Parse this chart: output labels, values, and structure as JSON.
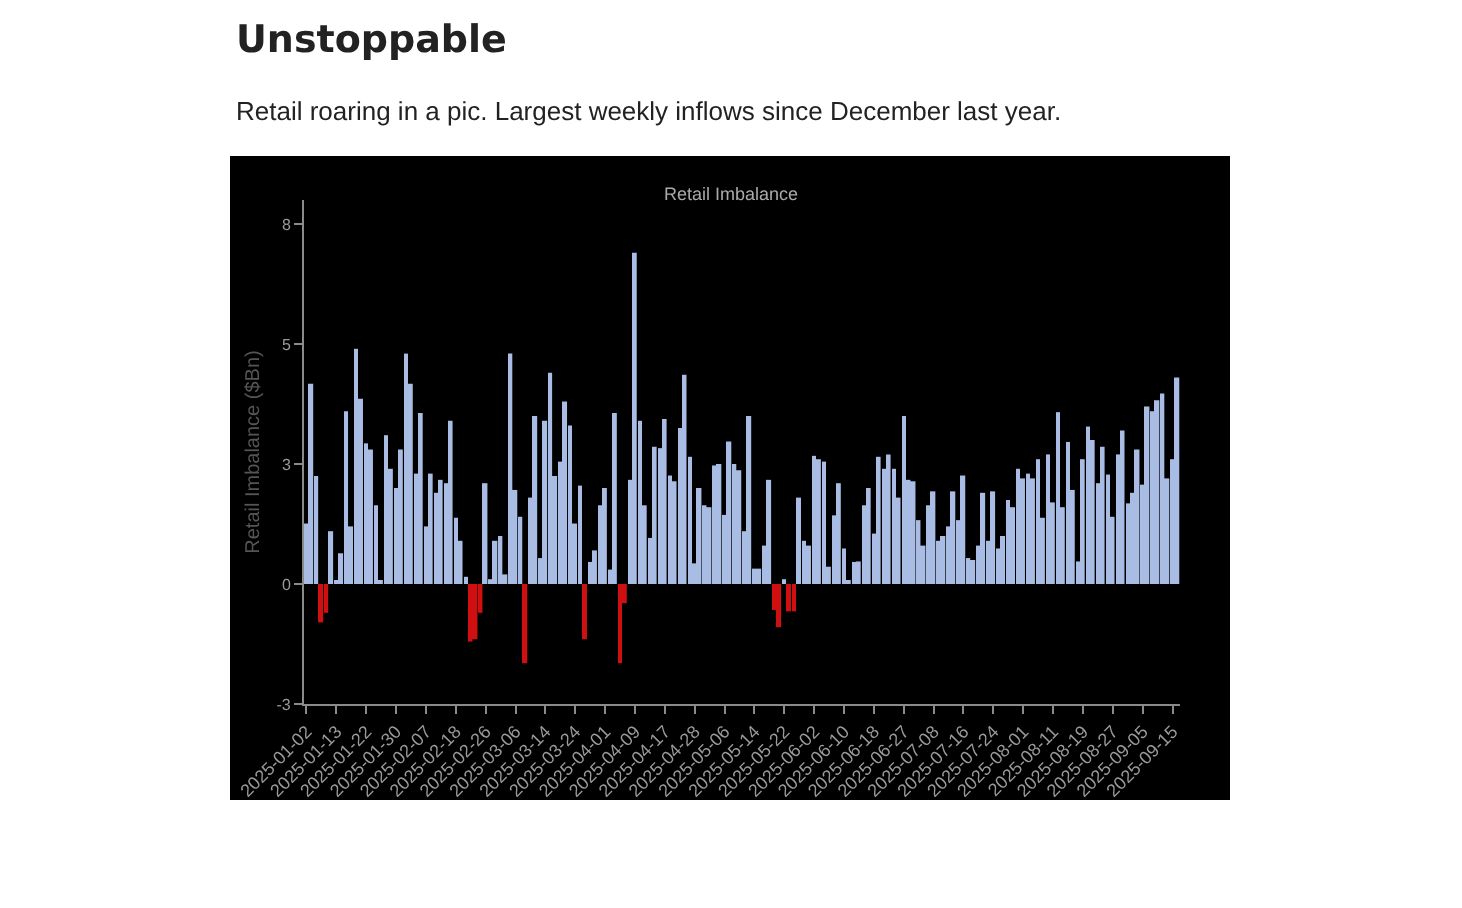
{
  "chart_data": {
    "type": "bar",
    "title": "Retail Imbalance",
    "annotations": [
      "Unstoppable",
      "Retail roaring in a pic. Largest weekly inflows since December last year."
    ],
    "ylabel": "Retail Imbalance ($Bn)",
    "categories": [
      "2025-01-02",
      null,
      null,
      null,
      null,
      null,
      "2025-01-13",
      null,
      null,
      null,
      null,
      null,
      "2025-01-22",
      null,
      null,
      null,
      null,
      null,
      "2025-01-30",
      null,
      null,
      null,
      null,
      null,
      "2025-02-07",
      null,
      null,
      null,
      null,
      null,
      "2025-02-18",
      null,
      null,
      null,
      null,
      null,
      "2025-02-26",
      null,
      null,
      null,
      null,
      null,
      "2025-03-06",
      null,
      null,
      null,
      null,
      null,
      "2025-03-14",
      null,
      null,
      null,
      null,
      null,
      "2025-03-24",
      null,
      null,
      null,
      null,
      null,
      "2025-04-01",
      null,
      null,
      null,
      null,
      null,
      "2025-04-09",
      null,
      null,
      null,
      null,
      null,
      "2025-04-17",
      null,
      null,
      null,
      null,
      null,
      "2025-04-28",
      null,
      null,
      null,
      null,
      null,
      "2025-05-06",
      null,
      null,
      null,
      null,
      null,
      "2025-05-14",
      null,
      null,
      null,
      null,
      null,
      "2025-05-22",
      null,
      null,
      null,
      null,
      null,
      "2025-06-02",
      null,
      null,
      null,
      null,
      null,
      "2025-06-10",
      null,
      null,
      null,
      null,
      null,
      "2025-06-18",
      null,
      null,
      null,
      null,
      null,
      "2025-06-27",
      null,
      null,
      null,
      null,
      null,
      "2025-07-08",
      null,
      null,
      null,
      null,
      null,
      "2025-07-16",
      null,
      null,
      null,
      null,
      null,
      "2025-07-24",
      null,
      null,
      null,
      null,
      null,
      "2025-08-01",
      null,
      null,
      null,
      null,
      null,
      "2025-08-11",
      null,
      null,
      null,
      null,
      null,
      "2025-08-19",
      null,
      null,
      null,
      null,
      null,
      "2025-08-27",
      null,
      null,
      null,
      null,
      null,
      "2025-09-05",
      null,
      null,
      null,
      null,
      null,
      "2025-09-15",
      null
    ],
    "values": [
      1.26,
      4.17,
      2.25,
      -0.8,
      -0.6,
      1.1,
      0.05,
      0.64,
      3.6,
      1.2,
      4.9,
      3.86,
      2.93,
      2.8,
      1.64,
      0.05,
      3.1,
      2.4,
      2.0,
      2.8,
      4.8,
      4.17,
      2.3,
      3.56,
      1.2,
      2.3,
      1.9,
      2.17,
      2.1,
      3.4,
      1.38,
      0.9,
      0.15,
      -1.2,
      -1.15,
      -0.6,
      2.1,
      0.1,
      0.9,
      1.0,
      0.2,
      4.8,
      1.96,
      1.4,
      -1.65,
      1.8,
      3.5,
      0.54,
      3.4,
      4.4,
      2.25,
      2.55,
      3.8,
      3.3,
      1.26,
      2.05,
      -1.15,
      0.46,
      0.7,
      1.64,
      2.0,
      0.3,
      3.56,
      -1.65,
      -0.4,
      2.17,
      6.9,
      3.4,
      1.64,
      0.96,
      2.86,
      2.83,
      3.44,
      2.26,
      2.14,
      3.25,
      4.36,
      2.65,
      0.43,
      2.0,
      1.64,
      1.6,
      2.47,
      2.5,
      1.44,
      2.97,
      2.5,
      2.37,
      1.1,
      3.5,
      0.32,
      0.32,
      0.8,
      2.17,
      -0.54,
      -0.9,
      0.1,
      -0.57,
      -0.57,
      1.8,
      0.9,
      0.8,
      2.67,
      2.6,
      2.55,
      0.36,
      1.43,
      2.1,
      0.74,
      0.08,
      0.46,
      0.47,
      1.64,
      2.0,
      1.05,
      2.65,
      2.4,
      2.7,
      2.4,
      1.8,
      3.5,
      2.17,
      2.14,
      1.33,
      0.8,
      1.64,
      1.93,
      0.9,
      1.0,
      1.2,
      1.93,
      1.33,
      2.26,
      0.54,
      0.5,
      0.8,
      1.9,
      0.9,
      1.93,
      0.74,
      1.0,
      1.75,
      1.6,
      2.4,
      2.2,
      2.3,
      2.2,
      2.6,
      1.38,
      2.7,
      1.7,
      3.58,
      1.6,
      2.96,
      1.96,
      0.47,
      2.6,
      3.28,
      3.0,
      2.1,
      2.86,
      2.28,
      1.4,
      2.7,
      3.2,
      1.68,
      1.9,
      2.8,
      2.07,
      3.7,
      3.6,
      3.83,
      3.97,
      2.2,
      2.6,
      4.3
    ],
    "colors": [
      "#a9bde4",
      "#a9bde4",
      "#a9bde4",
      "#d01010",
      "#d01010",
      "#a9bde4",
      "#a9bde4",
      "#a9bde4",
      "#a9bde4",
      "#a9bde4",
      "#a9bde4",
      "#a9bde4",
      "#a9bde4",
      "#a9bde4",
      "#a9bde4",
      "#a9bde4",
      "#a9bde4",
      "#a9bde4",
      "#a9bde4",
      "#a9bde4",
      "#a9bde4",
      "#a9bde4",
      "#a9bde4",
      "#a9bde4",
      "#a9bde4",
      "#a9bde4",
      "#a9bde4",
      "#a9bde4",
      "#a9bde4",
      "#a9bde4",
      "#a9bde4",
      "#a9bde4",
      "#a9bde4",
      "#d01010",
      "#d01010",
      "#d01010",
      "#a9bde4",
      "#a9bde4",
      "#a9bde4",
      "#a9bde4",
      "#a9bde4",
      "#a9bde4",
      "#a9bde4",
      "#a9bde4",
      "#d01010",
      "#a9bde4",
      "#a9bde4",
      "#a9bde4",
      "#a9bde4",
      "#a9bde4",
      "#a9bde4",
      "#a9bde4",
      "#a9bde4",
      "#a9bde4",
      "#a9bde4",
      "#a9bde4",
      "#d01010",
      "#a9bde4",
      "#a9bde4",
      "#a9bde4",
      "#a9bde4",
      "#a9bde4",
      "#a9bde4",
      "#d01010",
      "#d01010",
      "#a9bde4",
      "#a9bde4",
      "#a9bde4",
      "#a9bde4",
      "#a9bde4",
      "#a9bde4",
      "#a9bde4",
      "#a9bde4",
      "#a9bde4",
      "#a9bde4",
      "#a9bde4",
      "#a9bde4",
      "#a9bde4",
      "#a9bde4",
      "#a9bde4",
      "#a9bde4",
      "#a9bde4",
      "#a9bde4",
      "#a9bde4",
      "#a9bde4",
      "#a9bde4",
      "#a9bde4",
      "#a9bde4",
      "#a9bde4",
      "#a9bde4",
      "#a9bde4",
      "#a9bde4",
      "#a9bde4",
      "#a9bde4",
      "#d01010",
      "#d01010",
      "#a9bde4",
      "#d01010",
      "#d01010",
      "#a9bde4",
      "#a9bde4",
      "#a9bde4",
      "#a9bde4",
      "#a9bde4",
      "#a9bde4",
      "#a9bde4",
      "#a9bde4",
      "#a9bde4",
      "#a9bde4",
      "#a9bde4",
      "#a9bde4",
      "#a9bde4",
      "#a9bde4",
      "#a9bde4",
      "#a9bde4",
      "#a9bde4",
      "#a9bde4",
      "#a9bde4",
      "#a9bde4",
      "#a9bde4",
      "#a9bde4",
      "#a9bde4",
      "#a9bde4",
      "#a9bde4",
      "#a9bde4",
      "#a9bde4",
      "#a9bde4",
      "#a9bde4",
      "#a9bde4",
      "#a9bde4",
      "#a9bde4",
      "#a9bde4",
      "#a9bde4",
      "#a9bde4",
      "#a9bde4",
      "#a9bde4",
      "#a9bde4",
      "#a9bde4",
      "#a9bde4",
      "#a9bde4",
      "#a9bde4",
      "#a9bde4",
      "#a9bde4",
      "#a9bde4",
      "#a9bde4",
      "#a9bde4",
      "#a9bde4",
      "#a9bde4",
      "#a9bde4",
      "#a9bde4",
      "#a9bde4",
      "#a9bde4",
      "#a9bde4",
      "#a9bde4",
      "#a9bde4",
      "#a9bde4",
      "#a9bde4",
      "#a9bde4",
      "#a9bde4",
      "#a9bde4",
      "#a9bde4",
      "#a9bde4",
      "#a9bde4",
      "#a9bde4",
      "#a9bde4",
      "#a9bde4",
      "#a9bde4",
      "#a9bde4",
      "#a9bde4",
      "#a9bde4",
      "#a9bde4",
      "#a9bde4",
      "#a9bde4",
      "#a9bde4",
      "#a9bde4",
      "#a9bde4"
    ],
    "ylim": [
      -2.5,
      8
    ],
    "yticks": [
      {
        "value": -2.5,
        "label": "-3"
      },
      0,
      {
        "value": 2.5,
        "label": "3"
      },
      5,
      {
        "value": 7.5,
        "label": "8"
      }
    ]
  }
}
